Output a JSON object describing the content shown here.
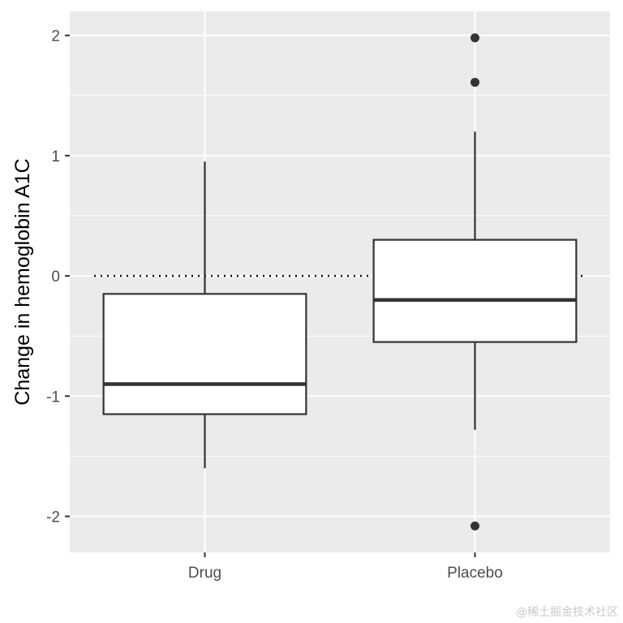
{
  "chart_data": {
    "type": "boxplot",
    "categories": [
      "Drug",
      "Placebo"
    ],
    "ylabel": "Change in hemoglobin A1C",
    "xlabel": "",
    "ylim": [
      -2.3,
      2.2
    ],
    "yticks": [
      -2,
      -1,
      0,
      1,
      2
    ],
    "ytick_labels": [
      "-2",
      "-1",
      "0",
      "1",
      "2"
    ],
    "reference_line": {
      "y": 0,
      "style": "dotted"
    },
    "grid": true,
    "boxes": [
      {
        "category": "Drug",
        "whisker_low": -1.6,
        "q1": -1.15,
        "median": -0.9,
        "q3": -0.15,
        "whisker_high": 0.95,
        "outliers": []
      },
      {
        "category": "Placebo",
        "whisker_low": -1.28,
        "q1": -0.55,
        "median": -0.2,
        "q3": 0.3,
        "whisker_high": 1.2,
        "outliers": [
          1.98,
          1.61,
          -2.08
        ]
      }
    ],
    "colors": {
      "panel": "#ebebeb",
      "grid": "#ffffff",
      "box_fill": "#ffffff",
      "box_stroke": "#333333",
      "point": "#333333"
    }
  },
  "watermark": "@稀土掘金技术社区"
}
